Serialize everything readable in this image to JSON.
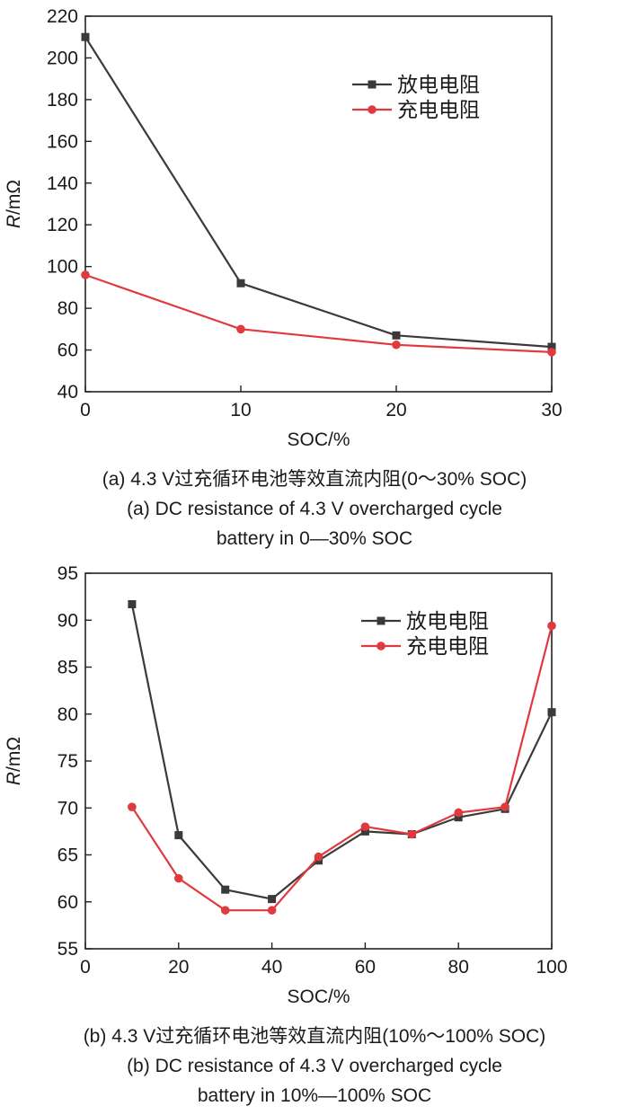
{
  "chart_data": [
    {
      "type": "line",
      "x": [
        0,
        10,
        20,
        30
      ],
      "series": [
        {
          "name": "放电电阻",
          "values": [
            210,
            92,
            67,
            61.5
          ],
          "color": "#3a3a3a",
          "marker": "square"
        },
        {
          "name": "充电电阻",
          "values": [
            96,
            70,
            62.5,
            59
          ],
          "color": "#e0393e",
          "marker": "circle"
        }
      ],
      "xlabel": "SOC/%",
      "ylabel_italic": "R",
      "ylabel_rest": "/mΩ",
      "xlim": [
        0,
        30
      ],
      "ylim": [
        40,
        220
      ],
      "xticks": [
        0,
        10,
        20,
        30
      ],
      "yticks": [
        40,
        60,
        80,
        100,
        120,
        140,
        160,
        180,
        200,
        220
      ],
      "legend_placement": "top-right",
      "grid": false,
      "caption_cn": "(a) 4.3 V过充循环电池等效直流内阻(0～30% SOC)",
      "caption_en_1": "(a) DC resistance of 4.3 V overcharged cycle",
      "caption_en_2": "battery in 0—30% SOC"
    },
    {
      "type": "line",
      "x": [
        10,
        20,
        30,
        40,
        50,
        60,
        70,
        80,
        90,
        100
      ],
      "series": [
        {
          "name": "放电电阻",
          "values": [
            91.7,
            67.1,
            61.3,
            60.3,
            64.4,
            67.5,
            67.2,
            69.0,
            69.9,
            80.2
          ],
          "color": "#3a3a3a",
          "marker": "square"
        },
        {
          "name": "充电电阻",
          "values": [
            70.1,
            62.5,
            59.1,
            59.1,
            64.8,
            68.0,
            67.2,
            69.5,
            70.1,
            89.4
          ],
          "color": "#e0393e",
          "marker": "circle"
        }
      ],
      "xlabel": "SOC/%",
      "ylabel_italic": "R",
      "ylabel_rest": "/mΩ",
      "xlim": [
        0,
        100
      ],
      "ylim": [
        55,
        95
      ],
      "xticks": [
        0,
        20,
        40,
        60,
        80,
        100
      ],
      "yticks": [
        55,
        60,
        65,
        70,
        75,
        80,
        85,
        90,
        95
      ],
      "legend_placement": "top-right",
      "grid": false,
      "caption_cn": "(b) 4.3 V过充循环电池等效直流内阻(10%～100% SOC)",
      "caption_en_1": "(b) DC resistance of 4.3 V overcharged cycle",
      "caption_en_2": "battery in 10%—100% SOC"
    }
  ]
}
